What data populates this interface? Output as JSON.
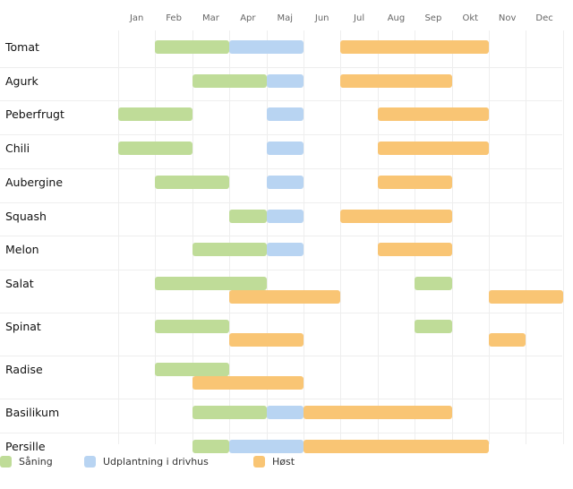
{
  "chart_data": {
    "type": "gantt",
    "months": [
      "Jan",
      "Feb",
      "Mar",
      "Apr",
      "Maj",
      "Jun",
      "Jul",
      "Aug",
      "Sep",
      "Okt",
      "Nov",
      "Dec"
    ],
    "series": [
      {
        "key": "saaning",
        "name": "Såning",
        "color": "#bfdc98"
      },
      {
        "key": "udplantning",
        "name": "Udplantning i drivhus",
        "color": "#b8d4f2"
      },
      {
        "key": "hoest",
        "name": "Høst",
        "color": "#f9c574"
      }
    ],
    "rows": [
      {
        "name": "Tomat",
        "lines": 1,
        "bars": [
          {
            "s": "saaning",
            "start": 1,
            "end": 3,
            "line": 0
          },
          {
            "s": "udplantning",
            "start": 3,
            "end": 5,
            "line": 0
          },
          {
            "s": "hoest",
            "start": 6,
            "end": 10,
            "line": 0
          }
        ]
      },
      {
        "name": "Agurk",
        "lines": 1,
        "bars": [
          {
            "s": "saaning",
            "start": 2,
            "end": 4,
            "line": 0
          },
          {
            "s": "udplantning",
            "start": 4,
            "end": 5,
            "line": 0
          },
          {
            "s": "hoest",
            "start": 6,
            "end": 9,
            "line": 0
          }
        ]
      },
      {
        "name": "Peberfrugt",
        "lines": 1,
        "bars": [
          {
            "s": "saaning",
            "start": 0,
            "end": 2,
            "line": 0
          },
          {
            "s": "udplantning",
            "start": 4,
            "end": 5,
            "line": 0
          },
          {
            "s": "hoest",
            "start": 7,
            "end": 10,
            "line": 0
          }
        ]
      },
      {
        "name": "Chili",
        "lines": 1,
        "bars": [
          {
            "s": "saaning",
            "start": 0,
            "end": 2,
            "line": 0
          },
          {
            "s": "udplantning",
            "start": 4,
            "end": 5,
            "line": 0
          },
          {
            "s": "hoest",
            "start": 7,
            "end": 10,
            "line": 0
          }
        ]
      },
      {
        "name": "Aubergine",
        "lines": 1,
        "bars": [
          {
            "s": "saaning",
            "start": 1,
            "end": 3,
            "line": 0
          },
          {
            "s": "udplantning",
            "start": 4,
            "end": 5,
            "line": 0
          },
          {
            "s": "hoest",
            "start": 7,
            "end": 9,
            "line": 0
          }
        ]
      },
      {
        "name": "Squash",
        "lines": 1,
        "bars": [
          {
            "s": "saaning",
            "start": 3,
            "end": 4,
            "line": 0
          },
          {
            "s": "udplantning",
            "start": 4,
            "end": 5,
            "line": 0
          },
          {
            "s": "hoest",
            "start": 6,
            "end": 9,
            "line": 0
          }
        ]
      },
      {
        "name": "Melon",
        "lines": 1,
        "bars": [
          {
            "s": "saaning",
            "start": 2,
            "end": 4,
            "line": 0
          },
          {
            "s": "udplantning",
            "start": 4,
            "end": 5,
            "line": 0
          },
          {
            "s": "hoest",
            "start": 7,
            "end": 9,
            "line": 0
          }
        ]
      },
      {
        "name": "Salat",
        "lines": 2,
        "bars": [
          {
            "s": "saaning",
            "start": 1,
            "end": 4,
            "line": 0
          },
          {
            "s": "saaning",
            "start": 8,
            "end": 9,
            "line": 0
          },
          {
            "s": "hoest",
            "start": 3,
            "end": 6,
            "line": 1
          },
          {
            "s": "hoest",
            "start": 10,
            "end": 12,
            "line": 1
          }
        ]
      },
      {
        "name": "Spinat",
        "lines": 2,
        "bars": [
          {
            "s": "saaning",
            "start": 1,
            "end": 3,
            "line": 0
          },
          {
            "s": "saaning",
            "start": 8,
            "end": 9,
            "line": 0
          },
          {
            "s": "hoest",
            "start": 3,
            "end": 5,
            "line": 1
          },
          {
            "s": "hoest",
            "start": 10,
            "end": 11,
            "line": 1
          }
        ]
      },
      {
        "name": "Radise",
        "lines": 2,
        "bars": [
          {
            "s": "saaning",
            "start": 1,
            "end": 3,
            "line": 0
          },
          {
            "s": "hoest",
            "start": 2,
            "end": 5,
            "line": 1
          }
        ]
      },
      {
        "name": "Basilikum",
        "lines": 1,
        "bars": [
          {
            "s": "saaning",
            "start": 2,
            "end": 4,
            "line": 0
          },
          {
            "s": "udplantning",
            "start": 4,
            "end": 5,
            "line": 0
          },
          {
            "s": "hoest",
            "start": 5,
            "end": 9,
            "line": 0
          }
        ]
      },
      {
        "name": "Persille",
        "lines": 1,
        "bars": [
          {
            "s": "saaning",
            "start": 2,
            "end": 3,
            "line": 0
          },
          {
            "s": "udplantning",
            "start": 3,
            "end": 5,
            "line": 0
          },
          {
            "s": "hoest",
            "start": 5,
            "end": 10,
            "line": 0
          }
        ]
      }
    ],
    "legend_position": "bottom-left"
  }
}
